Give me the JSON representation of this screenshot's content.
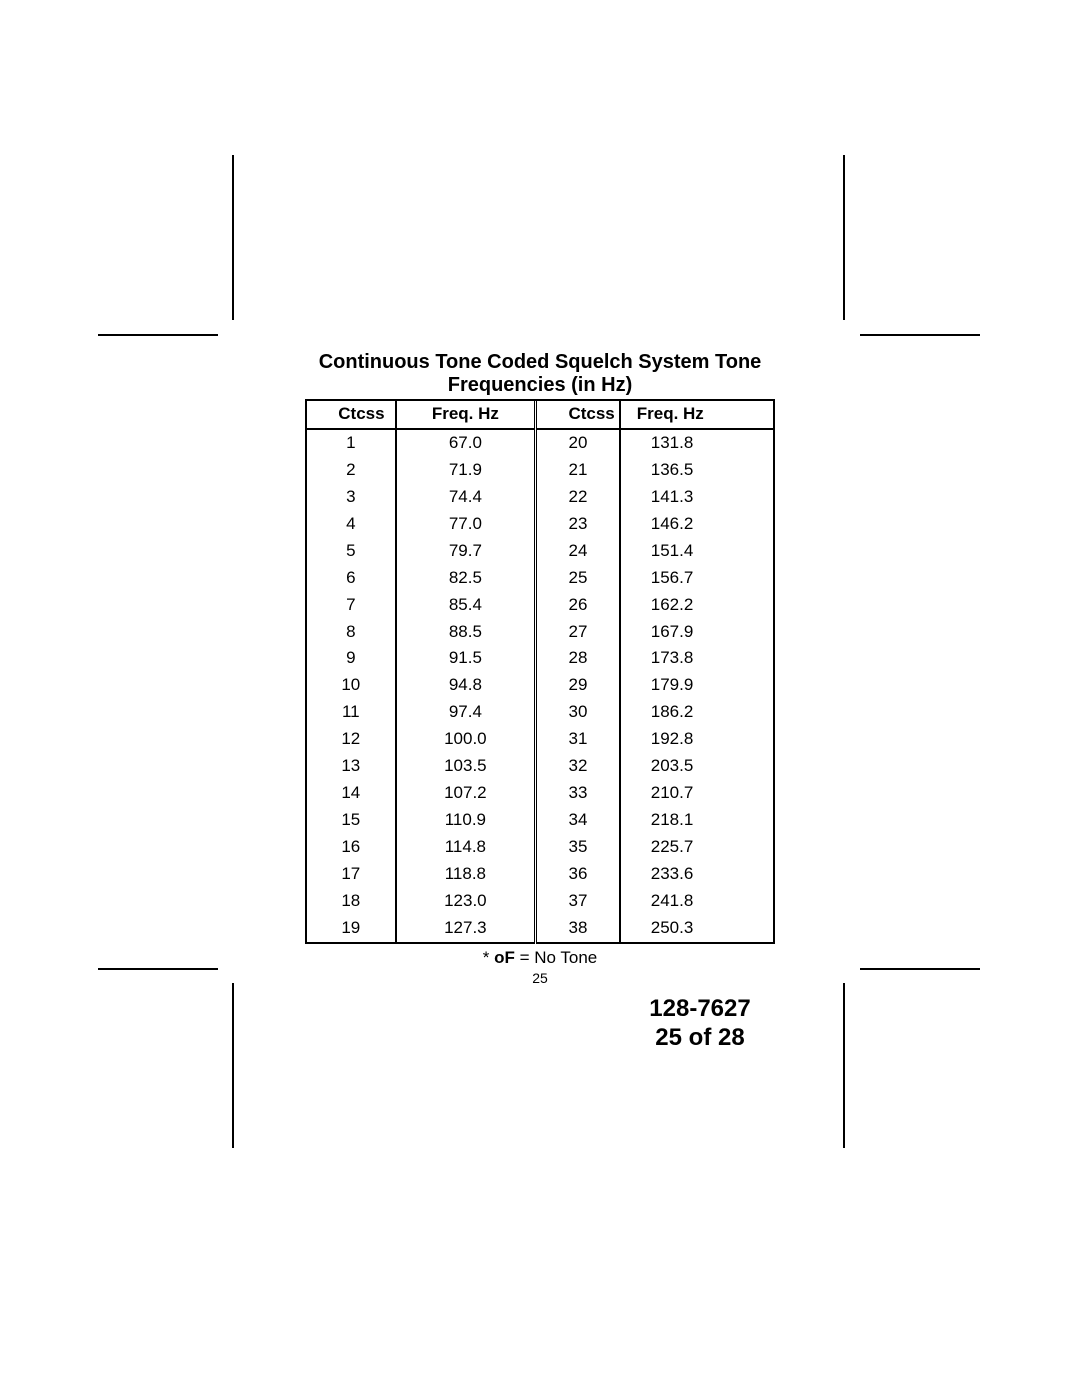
{
  "title_line1": "Continuous Tone Coded Squelch System Tone",
  "title_line2": "Frequencies (in Hz)",
  "table": {
    "columns": [
      "Ctcss",
      "Freq. Hz",
      "Ctcss",
      "Freq. Hz"
    ],
    "rows": [
      [
        "1",
        "67.0",
        "20",
        "131.8"
      ],
      [
        "2",
        "71.9",
        "21",
        "136.5"
      ],
      [
        "3",
        "74.4",
        "22",
        "141.3"
      ],
      [
        "4",
        "77.0",
        "23",
        "146.2"
      ],
      [
        "5",
        "79.7",
        "24",
        "151.4"
      ],
      [
        "6",
        "82.5",
        "25",
        "156.7"
      ],
      [
        "7",
        "85.4",
        "26",
        "162.2"
      ],
      [
        "8",
        "88.5",
        "27",
        "167.9"
      ],
      [
        "9",
        "91.5",
        "28",
        "173.8"
      ],
      [
        "10",
        "94.8",
        "29",
        "179.9"
      ],
      [
        "11",
        "97.4",
        "30",
        "186.2"
      ],
      [
        "12",
        "100.0",
        "31",
        "192.8"
      ],
      [
        "13",
        "103.5",
        "32",
        "203.5"
      ],
      [
        "14",
        "107.2",
        "33",
        "210.7"
      ],
      [
        "15",
        "110.9",
        "34",
        "218.1"
      ],
      [
        "16",
        "114.8",
        "35",
        "225.7"
      ],
      [
        "17",
        "118.8",
        "36",
        "233.6"
      ],
      [
        "18",
        "123.0",
        "37",
        "241.8"
      ],
      [
        "19",
        "127.3",
        "38",
        "250.3"
      ]
    ]
  },
  "footnote_prefix": "* ",
  "footnote_bold": "oF",
  "footnote_rest": "  = No Tone",
  "page_number": "25",
  "imposition_code": "128-7627",
  "imposition_page": "25 of 28"
}
